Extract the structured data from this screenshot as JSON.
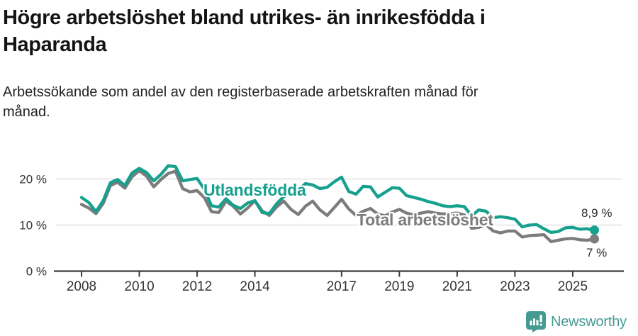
{
  "header": {
    "title_lines": [
      "Högre arbetslöshet bland utrikes- än inrikesfödda i",
      "Haparanda"
    ],
    "subtitle_lines": [
      "Arbetssökande som andel av den registerbaserade arbetskraften månad för",
      "månad."
    ]
  },
  "colors": {
    "accent_teal": "#16a08e",
    "line_gray": "#7c7c7c",
    "axis": "#3a3a3a",
    "grid": "#e2e2e2",
    "tick_text": "#333333",
    "value_text": "#2b2b2b",
    "brand_teal": "#459a92"
  },
  "chart_data": {
    "type": "line",
    "title": "Högre arbetslöshet bland utrikes- än inrikesfödda i Haparanda",
    "subtitle": "Arbetssökande som andel av den registerbaserade arbetskraften månad för månad.",
    "xlabel": "",
    "ylabel": "",
    "unit": "%",
    "x_start": 2008.0,
    "x_step": 0.25,
    "xlim": [
      2007.12,
      2026.72
    ],
    "ylim": [
      0,
      24.2
    ],
    "grid": "horizontal",
    "legend_position": "inline-labels",
    "x_ticks": [
      2008,
      2010,
      2012,
      2014,
      2017,
      2019,
      2021,
      2023,
      2025
    ],
    "y_ticks": [
      {
        "value": 0,
        "label": "0 %"
      },
      {
        "value": 10,
        "label": "10 %"
      },
      {
        "value": 20,
        "label": "20 %"
      }
    ],
    "series": [
      {
        "name": "Utlandsfödda",
        "color": "#16a08e",
        "end_label": "8,9 %",
        "end_value": 8.9,
        "values": [
          16.0,
          14.9,
          12.9,
          15.3,
          19.2,
          19.9,
          18.6,
          21.3,
          22.3,
          21.4,
          19.6,
          21.0,
          22.9,
          22.7,
          19.6,
          19.9,
          20.1,
          17.8,
          14.2,
          13.9,
          15.7,
          14.3,
          13.6,
          14.8,
          15.3,
          12.7,
          12.5,
          14.6,
          16.2,
          16.8,
          17.6,
          19.0,
          18.7,
          17.9,
          18.2,
          19.4,
          20.4,
          17.3,
          16.7,
          18.4,
          18.3,
          16.1,
          17.1,
          18.1,
          18.0,
          16.4,
          16.0,
          15.6,
          15.1,
          14.7,
          14.2,
          14.0,
          14.2,
          14.0,
          12.0,
          13.3,
          13.0,
          11.6,
          11.8,
          11.6,
          11.3,
          9.6,
          10.0,
          10.1,
          9.2,
          8.4,
          8.6,
          9.4,
          9.5,
          9.1,
          9.2,
          8.9
        ]
      },
      {
        "name": "Total arbetslöshet",
        "color": "#7c7c7c",
        "end_label": "7 %",
        "end_value": 7.0,
        "values": [
          14.5,
          13.7,
          12.5,
          14.7,
          18.6,
          19.3,
          18.0,
          20.5,
          21.8,
          20.6,
          18.3,
          19.9,
          21.2,
          21.7,
          17.9,
          17.2,
          17.5,
          16.0,
          12.9,
          12.7,
          15.2,
          14.1,
          12.4,
          13.7,
          15.3,
          13.1,
          12.1,
          13.9,
          15.2,
          13.4,
          12.3,
          14.1,
          15.2,
          13.3,
          12.1,
          13.8,
          15.6,
          13.5,
          12.1,
          13.0,
          13.6,
          12.4,
          12.0,
          12.8,
          13.4,
          12.6,
          12.2,
          12.6,
          12.9,
          12.6,
          12.4,
          12.5,
          12.6,
          12.2,
          9.3,
          9.5,
          10.1,
          8.7,
          8.3,
          8.7,
          8.7,
          7.4,
          7.7,
          7.8,
          7.9,
          6.4,
          6.7,
          7.0,
          7.1,
          6.8,
          6.7,
          7.0
        ]
      }
    ]
  },
  "footer": {
    "brand": "Newsworthy",
    "brand_color": "#459a92"
  }
}
